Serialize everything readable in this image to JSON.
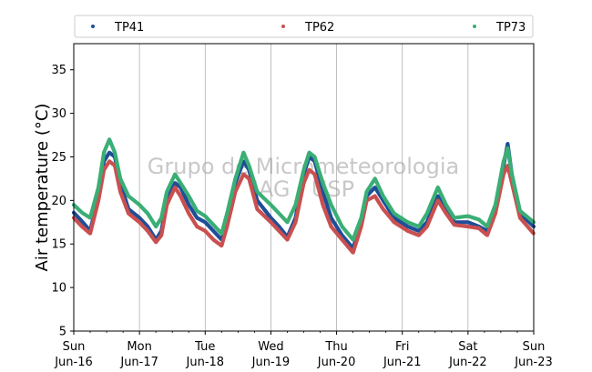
{
  "chart_data": {
    "type": "scatter",
    "title": "",
    "xlabel": "",
    "ylabel": "Air temperature (°C)",
    "ylim": [
      5,
      38
    ],
    "xlim": [
      "2024-06-16 00:00",
      "2024-06-23 00:00"
    ],
    "yticks": [
      5,
      10,
      15,
      20,
      25,
      30,
      35
    ],
    "xticks": [
      {
        "day": "Sun",
        "date": "Jun-16"
      },
      {
        "day": "Mon",
        "date": "Jun-17"
      },
      {
        "day": "Tue",
        "date": "Jun-18"
      },
      {
        "day": "Wed",
        "date": "Jun-19"
      },
      {
        "day": "Thu",
        "date": "Jun-20"
      },
      {
        "day": "Fri",
        "date": "Jun-21"
      },
      {
        "day": "Sat",
        "date": "Jun-22"
      },
      {
        "day": "Sun",
        "date": "Jun-23"
      }
    ],
    "grid": "vertical",
    "legend_position": "top",
    "watermark": [
      "Grupo de Micrometeorologia",
      "IAG / USP"
    ],
    "series": [
      {
        "name": "TP41",
        "color": "#1f4e99",
        "points": [
          [
            "2024-06-16 00:00",
            18.6
          ],
          [
            "2024-06-16 03:00",
            17.6
          ],
          [
            "2024-06-16 06:00",
            16.5
          ],
          [
            "2024-06-16 09:00",
            20.5
          ],
          [
            "2024-06-16 11:00",
            24.5
          ],
          [
            "2024-06-16 13:00",
            25.5
          ],
          [
            "2024-06-16 15:00",
            25.0
          ],
          [
            "2024-06-16 17:00",
            22.0
          ],
          [
            "2024-06-16 20:00",
            19.0
          ],
          [
            "2024-06-17 00:00",
            18.0
          ],
          [
            "2024-06-17 03:00",
            17.0
          ],
          [
            "2024-06-17 06:00",
            15.5
          ],
          [
            "2024-06-17 08:00",
            16.5
          ],
          [
            "2024-06-17 10:00",
            20.0
          ],
          [
            "2024-06-17 13:00",
            22.0
          ],
          [
            "2024-06-17 15:00",
            21.5
          ],
          [
            "2024-06-17 18:00",
            19.5
          ],
          [
            "2024-06-17 21:00",
            18.0
          ],
          [
            "2024-06-18 00:00",
            17.5
          ],
          [
            "2024-06-18 03:00",
            16.5
          ],
          [
            "2024-06-18 06:00",
            15.5
          ],
          [
            "2024-06-18 08:00",
            17.5
          ],
          [
            "2024-06-18 11:00",
            22.0
          ],
          [
            "2024-06-18 14:00",
            24.5
          ],
          [
            "2024-06-18 16:00",
            23.5
          ],
          [
            "2024-06-18 19:00",
            20.0
          ],
          [
            "2024-06-19 00:00",
            18.0
          ],
          [
            "2024-06-19 03:00",
            17.0
          ],
          [
            "2024-06-19 06:00",
            15.8
          ],
          [
            "2024-06-19 09:00",
            18.0
          ],
          [
            "2024-06-19 12:00",
            23.0
          ],
          [
            "2024-06-19 14:00",
            25.0
          ],
          [
            "2024-06-19 16:00",
            24.5
          ],
          [
            "2024-06-19 19:00",
            21.0
          ],
          [
            "2024-06-19 22:00",
            18.0
          ],
          [
            "2024-06-20 02:00",
            16.0
          ],
          [
            "2024-06-20 06:00",
            14.5
          ],
          [
            "2024-06-20 09:00",
            17.5
          ],
          [
            "2024-06-20 11:00",
            20.5
          ],
          [
            "2024-06-20 14:00",
            21.5
          ],
          [
            "2024-06-20 17:00",
            20.0
          ],
          [
            "2024-06-20 21:00",
            18.0
          ],
          [
            "2024-06-21 02:00",
            17.0
          ],
          [
            "2024-06-21 06:00",
            16.5
          ],
          [
            "2024-06-21 09:00",
            17.5
          ],
          [
            "2024-06-21 13:00",
            20.5
          ],
          [
            "2024-06-21 16:00",
            19.0
          ],
          [
            "2024-06-21 19:00",
            17.5
          ],
          [
            "2024-06-22 00:00",
            17.5
          ],
          [
            "2024-06-22 04:00",
            17.0
          ],
          [
            "2024-06-22 07:00",
            16.5
          ],
          [
            "2024-06-22 10:00",
            19.0
          ],
          [
            "2024-06-22 13:00",
            24.0
          ],
          [
            "2024-06-22 14:30",
            26.5
          ],
          [
            "2024-06-22 16:00",
            23.0
          ],
          [
            "2024-06-22 19:00",
            18.5
          ],
          [
            "2024-06-23 00:00",
            17.0
          ]
        ]
      },
      {
        "name": "TP62",
        "color": "#c9504f",
        "points": [
          [
            "2024-06-16 00:00",
            18.0
          ],
          [
            "2024-06-16 03:00",
            17.0
          ],
          [
            "2024-06-16 06:00",
            16.2
          ],
          [
            "2024-06-16 09:00",
            20.0
          ],
          [
            "2024-06-16 11:00",
            23.5
          ],
          [
            "2024-06-16 13:00",
            24.5
          ],
          [
            "2024-06-16 15:00",
            24.0
          ],
          [
            "2024-06-16 17:00",
            21.0
          ],
          [
            "2024-06-16 20:00",
            18.5
          ],
          [
            "2024-06-17 00:00",
            17.5
          ],
          [
            "2024-06-17 03:00",
            16.5
          ],
          [
            "2024-06-17 06:00",
            15.2
          ],
          [
            "2024-06-17 08:00",
            16.0
          ],
          [
            "2024-06-17 10:00",
            19.5
          ],
          [
            "2024-06-17 13:00",
            21.5
          ],
          [
            "2024-06-17 15:00",
            20.5
          ],
          [
            "2024-06-17 18:00",
            18.5
          ],
          [
            "2024-06-17 21:00",
            17.0
          ],
          [
            "2024-06-18 00:00",
            16.5
          ],
          [
            "2024-06-18 03:00",
            15.5
          ],
          [
            "2024-06-18 06:00",
            14.8
          ],
          [
            "2024-06-18 08:00",
            17.0
          ],
          [
            "2024-06-18 11:00",
            21.0
          ],
          [
            "2024-06-18 14:00",
            23.0
          ],
          [
            "2024-06-18 16:00",
            22.5
          ],
          [
            "2024-06-18 19:00",
            19.0
          ],
          [
            "2024-06-19 00:00",
            17.5
          ],
          [
            "2024-06-19 03:00",
            16.5
          ],
          [
            "2024-06-19 06:00",
            15.5
          ],
          [
            "2024-06-19 09:00",
            17.5
          ],
          [
            "2024-06-19 12:00",
            22.0
          ],
          [
            "2024-06-19 14:00",
            23.5
          ],
          [
            "2024-06-19 16:00",
            23.0
          ],
          [
            "2024-06-19 19:00",
            19.5
          ],
          [
            "2024-06-19 22:00",
            17.0
          ],
          [
            "2024-06-20 02:00",
            15.5
          ],
          [
            "2024-06-20 06:00",
            14.0
          ],
          [
            "2024-06-20 09:00",
            17.0
          ],
          [
            "2024-06-20 11:00",
            20.0
          ],
          [
            "2024-06-20 14:00",
            20.5
          ],
          [
            "2024-06-20 17:00",
            19.0
          ],
          [
            "2024-06-20 21:00",
            17.5
          ],
          [
            "2024-06-21 02:00",
            16.5
          ],
          [
            "2024-06-21 06:00",
            16.0
          ],
          [
            "2024-06-21 09:00",
            17.0
          ],
          [
            "2024-06-21 13:00",
            20.0
          ],
          [
            "2024-06-21 16:00",
            18.5
          ],
          [
            "2024-06-21 19:00",
            17.2
          ],
          [
            "2024-06-22 00:00",
            17.0
          ],
          [
            "2024-06-22 04:00",
            16.8
          ],
          [
            "2024-06-22 07:00",
            16.0
          ],
          [
            "2024-06-22 10:00",
            18.5
          ],
          [
            "2024-06-22 13:00",
            23.0
          ],
          [
            "2024-06-22 14:30",
            24.0
          ],
          [
            "2024-06-22 16:00",
            22.0
          ],
          [
            "2024-06-22 19:00",
            18.0
          ],
          [
            "2024-06-23 00:00",
            16.2
          ]
        ]
      },
      {
        "name": "TP73",
        "color": "#3aae75",
        "points": [
          [
            "2024-06-16 00:00",
            19.5
          ],
          [
            "2024-06-16 03:00",
            18.6
          ],
          [
            "2024-06-16 06:00",
            18.0
          ],
          [
            "2024-06-16 09:00",
            21.5
          ],
          [
            "2024-06-16 11:00",
            25.5
          ],
          [
            "2024-06-16 13:00",
            27.0
          ],
          [
            "2024-06-16 15:00",
            25.5
          ],
          [
            "2024-06-16 17:00",
            22.5
          ],
          [
            "2024-06-16 20:00",
            20.5
          ],
          [
            "2024-06-17 00:00",
            19.5
          ],
          [
            "2024-06-17 03:00",
            18.5
          ],
          [
            "2024-06-17 06:00",
            17.0
          ],
          [
            "2024-06-17 08:00",
            18.0
          ],
          [
            "2024-06-17 10:00",
            21.0
          ],
          [
            "2024-06-17 13:00",
            23.0
          ],
          [
            "2024-06-17 15:00",
            22.0
          ],
          [
            "2024-06-17 18:00",
            20.5
          ],
          [
            "2024-06-17 21:00",
            18.8
          ],
          [
            "2024-06-18 00:00",
            18.2
          ],
          [
            "2024-06-18 03:00",
            17.2
          ],
          [
            "2024-06-18 06:00",
            16.2
          ],
          [
            "2024-06-18 08:00",
            18.5
          ],
          [
            "2024-06-18 11:00",
            22.5
          ],
          [
            "2024-06-18 14:00",
            25.5
          ],
          [
            "2024-06-18 16:00",
            24.0
          ],
          [
            "2024-06-18 19:00",
            21.0
          ],
          [
            "2024-06-19 00:00",
            19.5
          ],
          [
            "2024-06-19 03:00",
            18.5
          ],
          [
            "2024-06-19 06:00",
            17.5
          ],
          [
            "2024-06-19 09:00",
            19.5
          ],
          [
            "2024-06-19 12:00",
            23.5
          ],
          [
            "2024-06-19 14:00",
            25.5
          ],
          [
            "2024-06-19 16:00",
            25.0
          ],
          [
            "2024-06-19 19:00",
            22.0
          ],
          [
            "2024-06-19 22:00",
            19.5
          ],
          [
            "2024-06-20 02:00",
            17.0
          ],
          [
            "2024-06-20 06:00",
            15.5
          ],
          [
            "2024-06-20 09:00",
            18.0
          ],
          [
            "2024-06-20 11:00",
            21.0
          ],
          [
            "2024-06-20 14:00",
            22.5
          ],
          [
            "2024-06-20 17:00",
            20.5
          ],
          [
            "2024-06-20 21:00",
            18.5
          ],
          [
            "2024-06-21 02:00",
            17.5
          ],
          [
            "2024-06-21 06:00",
            17.0
          ],
          [
            "2024-06-21 09:00",
            18.5
          ],
          [
            "2024-06-21 13:00",
            21.5
          ],
          [
            "2024-06-21 16:00",
            19.5
          ],
          [
            "2024-06-21 19:00",
            18.0
          ],
          [
            "2024-06-22 00:00",
            18.2
          ],
          [
            "2024-06-22 04:00",
            17.8
          ],
          [
            "2024-06-22 07:00",
            17.0
          ],
          [
            "2024-06-22 10:00",
            19.5
          ],
          [
            "2024-06-22 13:00",
            24.5
          ],
          [
            "2024-06-22 14:30",
            26.0
          ],
          [
            "2024-06-22 16:00",
            23.0
          ],
          [
            "2024-06-22 19:00",
            18.8
          ],
          [
            "2024-06-23 00:00",
            17.5
          ]
        ]
      }
    ]
  }
}
